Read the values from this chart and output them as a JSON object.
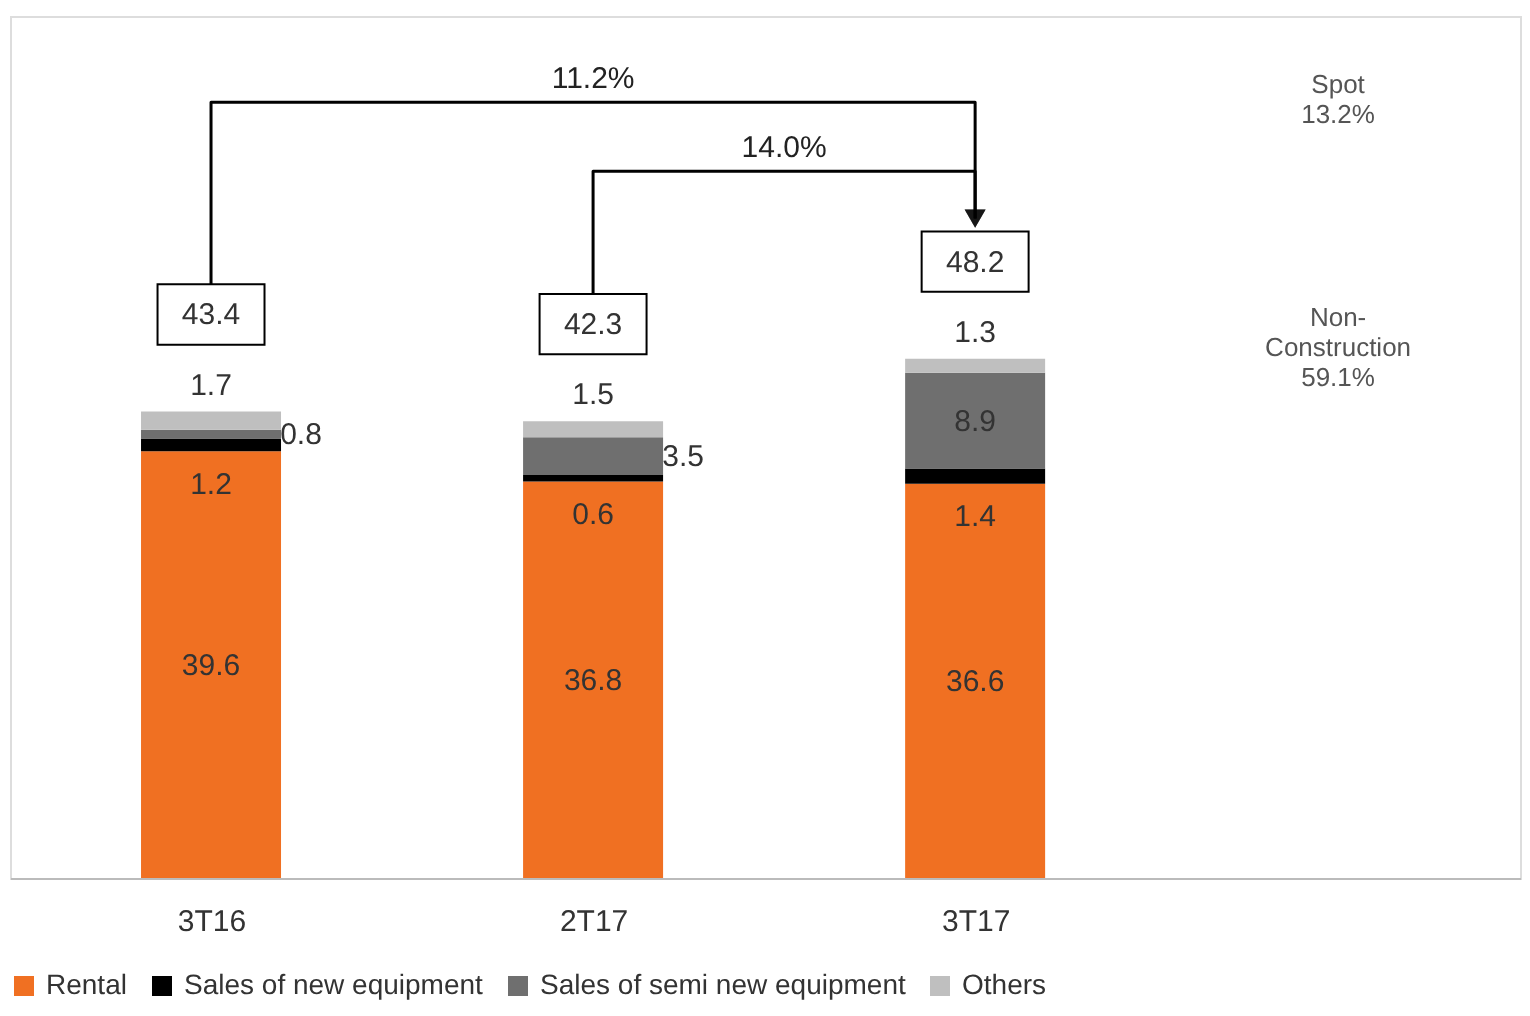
{
  "chart_data": {
    "type": "bar",
    "stacked": true,
    "categories": [
      "3T16",
      "2T17",
      "3T17"
    ],
    "series": [
      {
        "name": "Rental",
        "color": "#f07022",
        "values": [
          39.6,
          36.8,
          36.6
        ]
      },
      {
        "name": "Sales of new equipment",
        "color": "#000000",
        "values": [
          1.2,
          0.6,
          1.4
        ]
      },
      {
        "name": "Sales of semi new equipment",
        "color": "#6f6f6f",
        "values": [
          0.8,
          3.5,
          8.9
        ]
      },
      {
        "name": "Others",
        "color": "#bfbfbf",
        "values": [
          1.7,
          1.5,
          1.3
        ]
      }
    ],
    "ylim": [
      0,
      80
    ],
    "data_labels": true,
    "totals": [
      "43.4",
      "42.3",
      "48.2"
    ],
    "annotations": [
      "11.2%",
      "14.0%",
      "Spot\n13.2%",
      "Non-\nConstruction\n59.1%"
    ],
    "legend": "bottom",
    "grid": false,
    "tick_labels": "x"
  }
}
